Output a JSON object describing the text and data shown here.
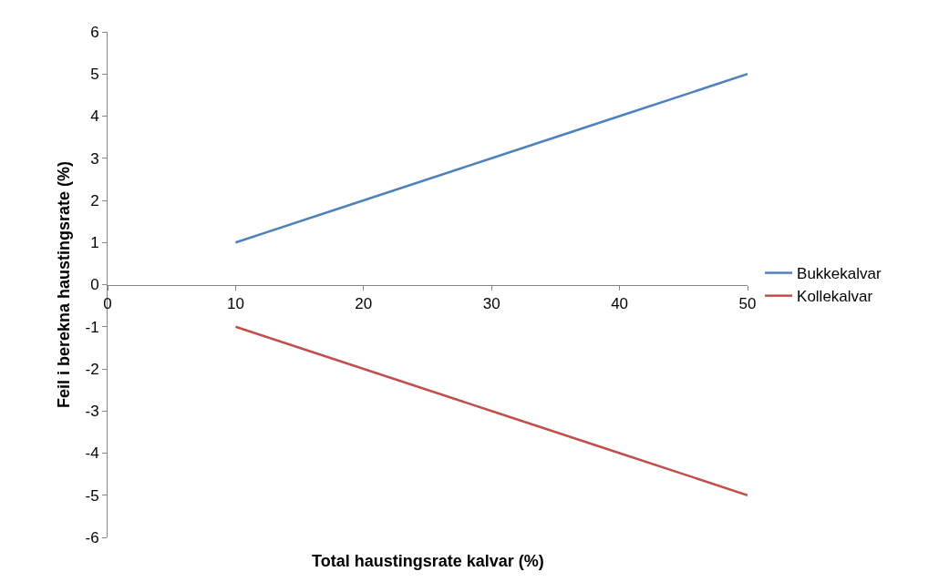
{
  "chart_data": {
    "type": "line",
    "xlabel": "Total haustingsrate kalvar (%)",
    "ylabel": "Feil i berekna haustingsrate (%)",
    "x": [
      10,
      20,
      30,
      40,
      50
    ],
    "series": [
      {
        "name": "Bukkekalvar",
        "color": "#4f81bd",
        "values": [
          1,
          2,
          3,
          4,
          5
        ]
      },
      {
        "name": "Kollekalvar",
        "color": "#c0504d",
        "values": [
          -1,
          -2,
          -3,
          -4,
          -5
        ]
      }
    ],
    "xlim": [
      0,
      50
    ],
    "xticks": [
      0,
      10,
      20,
      30,
      40,
      50
    ],
    "ylim": [
      -6,
      6
    ],
    "yticks": [
      -6,
      -5,
      -4,
      -3,
      -2,
      -1,
      0,
      1,
      2,
      3,
      4,
      5,
      6
    ],
    "grid": false,
    "legend": "right",
    "marker": "none",
    "line_style": "solid"
  }
}
